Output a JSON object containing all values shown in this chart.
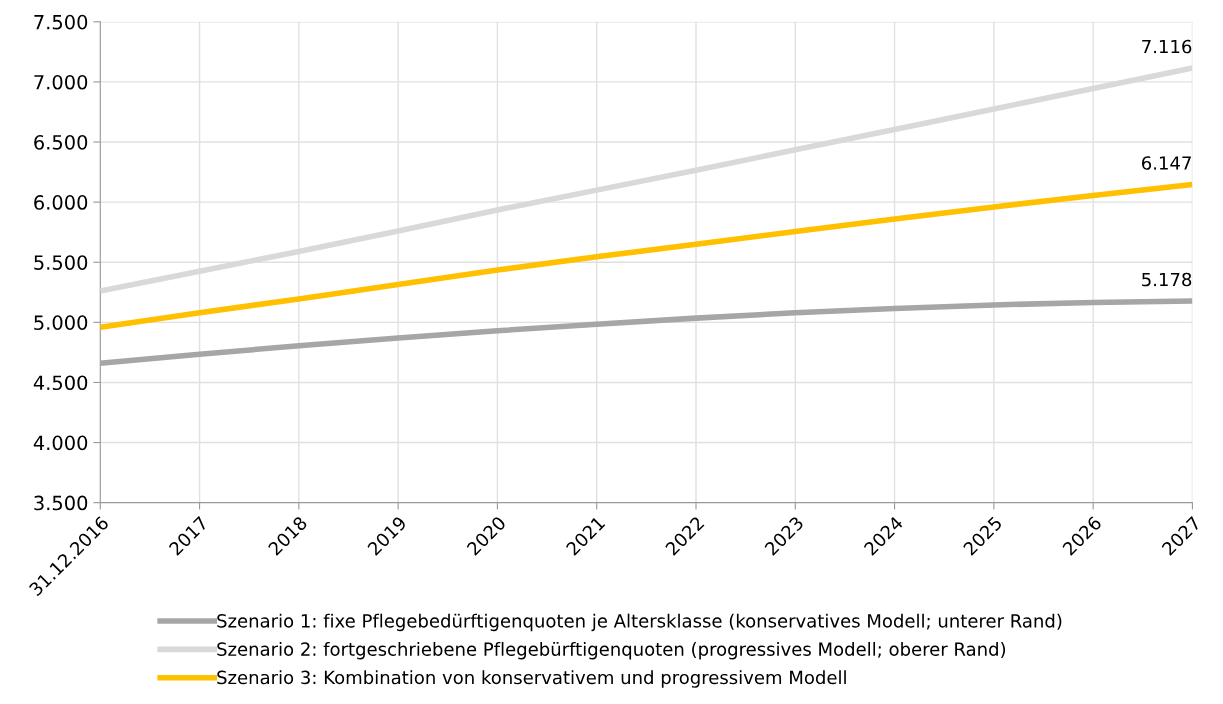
{
  "chart_data": {
    "type": "line",
    "categories": [
      "31.12.2016",
      "2017",
      "2018",
      "2019",
      "2020",
      "2021",
      "2022",
      "2023",
      "2024",
      "2025",
      "2026",
      "2027"
    ],
    "series": [
      {
        "name": "Szenario 1: fixe Pflegebedürftigenquoten je Altersklasse (konservatives Modell; unterer Rand)",
        "color": "#a6a6a6",
        "values": [
          4660,
          4735,
          4805,
          4870,
          4930,
          4985,
          5035,
          5080,
          5115,
          5145,
          5165,
          5178
        ],
        "value_labels": [
          null,
          null,
          null,
          null,
          null,
          null,
          null,
          null,
          null,
          null,
          null,
          "5.178"
        ]
      },
      {
        "name": "Szenario 2: fortgeschriebene Pflegebürftigenquoten (progressives Modell; oberer Rand)",
        "color": "#d9d9d9",
        "values": [
          5260,
          5425,
          5590,
          5760,
          5935,
          6100,
          6265,
          6435,
          6605,
          6775,
          6945,
          7116
        ],
        "value_labels": [
          null,
          null,
          null,
          null,
          null,
          null,
          null,
          null,
          null,
          null,
          null,
          "7.116"
        ]
      },
      {
        "name": "Szenario 3: Kombination von konservativem und progressivem Modell",
        "color": "#ffc000",
        "values": [
          4960,
          5080,
          5195,
          5315,
          5435,
          5545,
          5650,
          5755,
          5860,
          5960,
          6055,
          6147
        ],
        "value_labels": [
          null,
          null,
          null,
          null,
          null,
          null,
          null,
          null,
          null,
          null,
          null,
          "6.147"
        ]
      }
    ],
    "ylim": [
      3500,
      7500
    ],
    "yticks": [
      {
        "value": 3500,
        "label": "3.500"
      },
      {
        "value": 4000,
        "label": "4.000"
      },
      {
        "value": 4500,
        "label": "4.500"
      },
      {
        "value": 5000,
        "label": "5.000"
      },
      {
        "value": 5500,
        "label": "5.500"
      },
      {
        "value": 6000,
        "label": "6.000"
      },
      {
        "value": 6500,
        "label": "6.500"
      },
      {
        "value": 7000,
        "label": "7.000"
      },
      {
        "value": 7500,
        "label": "7.500"
      }
    ],
    "grid": true,
    "legend": "bottom",
    "marker": "none",
    "line_style": "solid"
  }
}
